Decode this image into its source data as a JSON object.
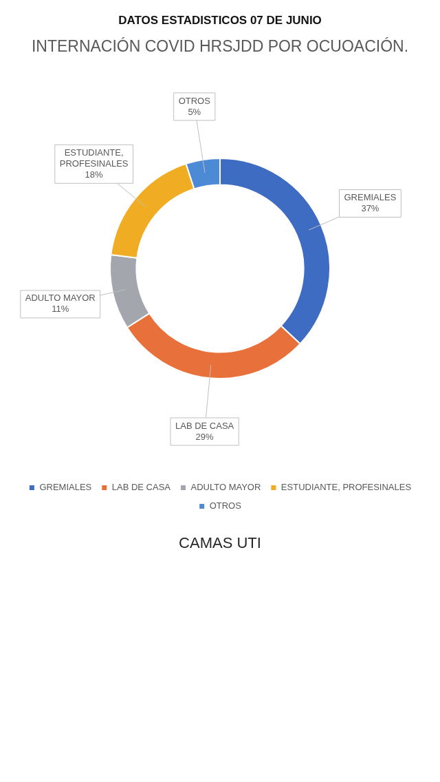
{
  "chart_data": {
    "type": "donut",
    "title": "DATOS ESTADISTICOS 07 DE JUNIO",
    "subtitle": "INTERNACIÓN COVID HRSJDD POR OCUOACIÓN.",
    "categories": [
      "GREMIALES",
      "LAB DE CASA",
      "ADULTO MAYOR",
      "ESTUDIANTE, PROFESINALES",
      "OTROS"
    ],
    "values": [
      37,
      29,
      11,
      18,
      5
    ],
    "colors": [
      "#3d6cc2",
      "#e8703a",
      "#a3a7ad",
      "#f0ad24",
      "#4d8ad6"
    ],
    "value_labels": [
      "37%",
      "29%",
      "11%",
      "18%",
      "5%"
    ],
    "legend": "bottom",
    "annotations": [
      "CAMAS UTI"
    ]
  }
}
